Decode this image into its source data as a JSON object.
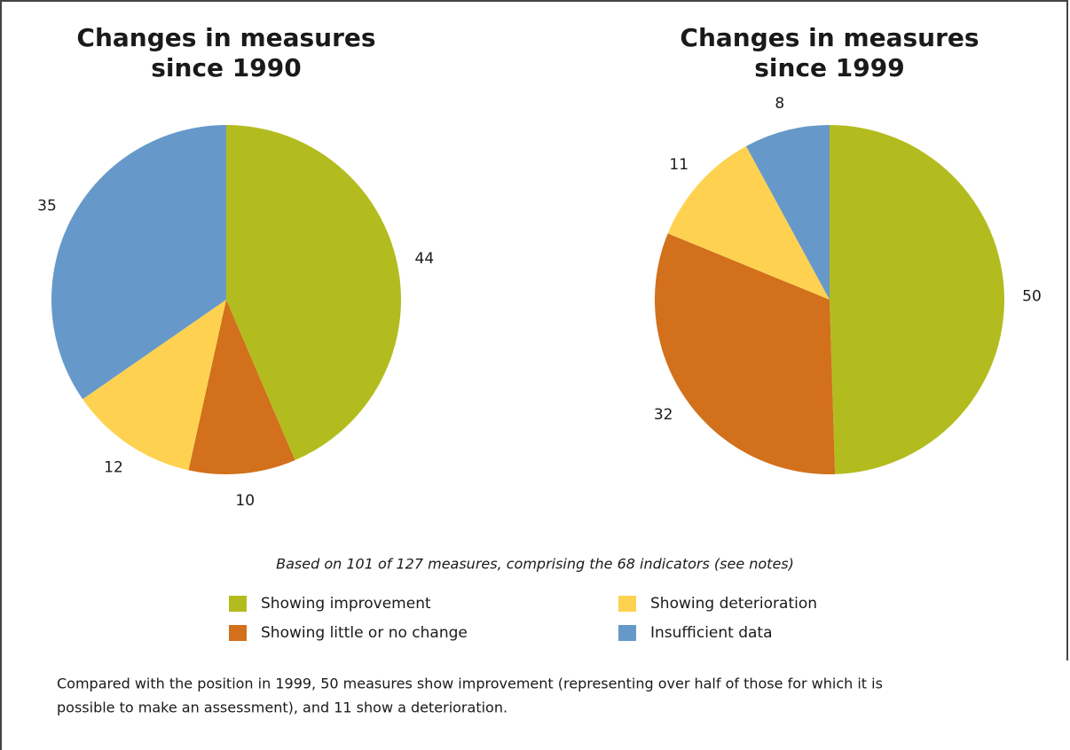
{
  "chart_data": [
    {
      "type": "pie",
      "title": [
        "Changes in measures",
        "since 1990"
      ],
      "values": [
        44,
        10,
        12,
        35
      ]
    },
    {
      "type": "pie",
      "title": [
        "Changes in measures",
        "since 1999"
      ],
      "values": [
        50,
        32,
        11,
        8
      ]
    }
  ],
  "categories": [
    "Showing improvement",
    "Showing little or no change",
    "Showing deterioration",
    "Insufficient data"
  ],
  "colors": [
    "#b3bc1f",
    "#d2701c",
    "#fed250",
    "#6699c9"
  ],
  "note": "Based on 101 of 127 measures, comprising the 68 indicators (see notes)",
  "caption": [
    "Compared with the position in 1999, 50 measures show improvement (representing over half of those for which it is",
    "possible to make an assessment), and 11 show a deterioration."
  ]
}
